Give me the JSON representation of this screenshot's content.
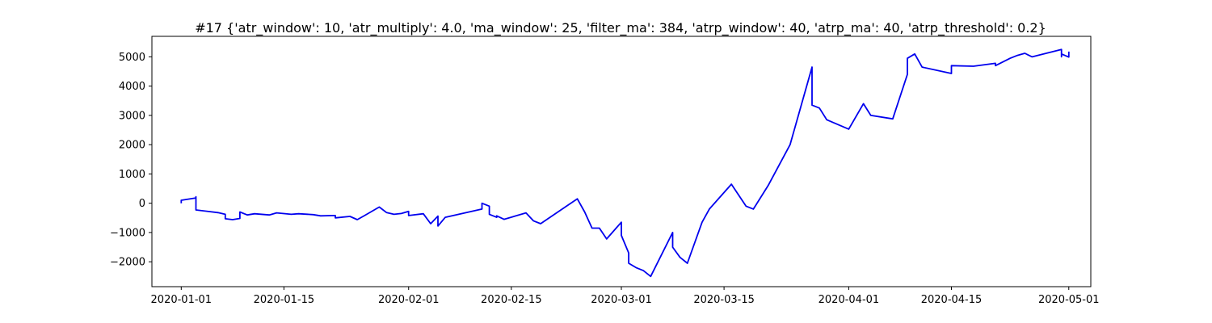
{
  "chart_data": {
    "type": "line",
    "title": "#17 {'atr_window': 10, 'atr_multiply': 4.0, 'ma_window': 25, 'filter_ma': 384, 'atrp_window': 40, 'atrp_ma': 40, 'atrp_threshold': 0.2}",
    "xlabel": "",
    "ylabel": "",
    "x_axis_type": "date",
    "xlim": [
      "2019-12-28",
      "2020-05-04"
    ],
    "ylim": [
      -2850,
      5700
    ],
    "xticks": [
      "2020-01-01",
      "2020-01-15",
      "2020-02-01",
      "2020-02-15",
      "2020-03-01",
      "2020-03-15",
      "2020-04-01",
      "2020-04-15",
      "2020-05-01"
    ],
    "yticks": [
      -2000,
      -1000,
      0,
      1000,
      2000,
      3000,
      4000,
      5000
    ],
    "grid": false,
    "legend": "none",
    "series": [
      {
        "color": "#0000ee",
        "points": [
          [
            "2020-01-01",
            0
          ],
          [
            "2020-01-01",
            100
          ],
          [
            "2020-01-03",
            180
          ],
          [
            "2020-01-03",
            220
          ],
          [
            "2020-01-03",
            170
          ],
          [
            "2020-01-03",
            -230
          ],
          [
            "2020-01-06",
            -320
          ],
          [
            "2020-01-07",
            -380
          ],
          [
            "2020-01-07",
            -530
          ],
          [
            "2020-01-08",
            -560
          ],
          [
            "2020-01-09",
            -520
          ],
          [
            "2020-01-09",
            -300
          ],
          [
            "2020-01-10",
            -400
          ],
          [
            "2020-01-11",
            -360
          ],
          [
            "2020-01-13",
            -400
          ],
          [
            "2020-01-14",
            -330
          ],
          [
            "2020-01-16",
            -380
          ],
          [
            "2020-01-17",
            -360
          ],
          [
            "2020-01-19",
            -390
          ],
          [
            "2020-01-20",
            -430
          ],
          [
            "2020-01-22",
            -420
          ],
          [
            "2020-01-22",
            -500
          ],
          [
            "2020-01-24",
            -450
          ],
          [
            "2020-01-25",
            -560
          ],
          [
            "2020-01-26",
            -420
          ],
          [
            "2020-01-28",
            -130
          ],
          [
            "2020-01-29",
            -320
          ],
          [
            "2020-01-30",
            -380
          ],
          [
            "2020-01-31",
            -350
          ],
          [
            "2020-02-01",
            -280
          ],
          [
            "2020-02-01",
            -420
          ],
          [
            "2020-02-03",
            -360
          ],
          [
            "2020-02-04",
            -700
          ],
          [
            "2020-02-05",
            -440
          ],
          [
            "2020-02-05",
            -780
          ],
          [
            "2020-02-06",
            -480
          ],
          [
            "2020-02-11",
            -200
          ],
          [
            "2020-02-11",
            0
          ],
          [
            "2020-02-12",
            -100
          ],
          [
            "2020-02-12",
            -380
          ],
          [
            "2020-02-13",
            -480
          ],
          [
            "2020-02-13",
            -430
          ],
          [
            "2020-02-14",
            -550
          ],
          [
            "2020-02-17",
            -330
          ],
          [
            "2020-02-18",
            -600
          ],
          [
            "2020-02-19",
            -700
          ],
          [
            "2020-02-24",
            150
          ],
          [
            "2020-02-25",
            -300
          ],
          [
            "2020-02-26",
            -850
          ],
          [
            "2020-02-27",
            -850
          ],
          [
            "2020-02-28",
            -1220
          ],
          [
            "2020-03-01",
            -650
          ],
          [
            "2020-03-01",
            -1100
          ],
          [
            "2020-03-02",
            -1700
          ],
          [
            "2020-03-02",
            -2050
          ],
          [
            "2020-03-03",
            -2200
          ],
          [
            "2020-03-04",
            -2300
          ],
          [
            "2020-03-05",
            -2500
          ],
          [
            "2020-03-08",
            -1000
          ],
          [
            "2020-03-08",
            -1500
          ],
          [
            "2020-03-09",
            -1850
          ],
          [
            "2020-03-10",
            -2050
          ],
          [
            "2020-03-12",
            -650
          ],
          [
            "2020-03-13",
            -200
          ],
          [
            "2020-03-16",
            650
          ],
          [
            "2020-03-18",
            -100
          ],
          [
            "2020-03-19",
            -200
          ],
          [
            "2020-03-21",
            600
          ],
          [
            "2020-03-24",
            2000
          ],
          [
            "2020-03-27",
            4650
          ],
          [
            "2020-03-27",
            3350
          ],
          [
            "2020-03-28",
            3250
          ],
          [
            "2020-03-29",
            2850
          ],
          [
            "2020-04-01",
            2530
          ],
          [
            "2020-04-03",
            3400
          ],
          [
            "2020-04-04",
            3000
          ],
          [
            "2020-04-07",
            2880
          ],
          [
            "2020-04-09",
            4400
          ],
          [
            "2020-04-09",
            4950
          ],
          [
            "2020-04-10",
            5100
          ],
          [
            "2020-04-11",
            4650
          ],
          [
            "2020-04-15",
            4430
          ],
          [
            "2020-04-15",
            4450
          ],
          [
            "2020-04-15",
            4700
          ],
          [
            "2020-04-18",
            4680
          ],
          [
            "2020-04-21",
            4780
          ],
          [
            "2020-04-21",
            4700
          ],
          [
            "2020-04-23",
            4950
          ],
          [
            "2020-04-24",
            5050
          ],
          [
            "2020-04-25",
            5120
          ],
          [
            "2020-04-26",
            5000
          ],
          [
            "2020-04-30",
            5250
          ],
          [
            "2020-04-30",
            5000
          ],
          [
            "2020-04-30",
            5100
          ],
          [
            "2020-05-01",
            4990
          ],
          [
            "2020-05-01",
            5180
          ]
        ]
      }
    ]
  }
}
